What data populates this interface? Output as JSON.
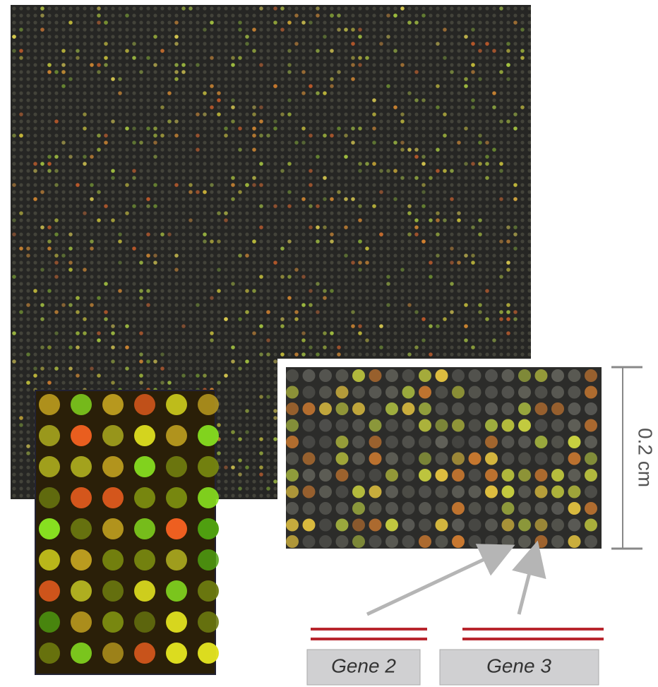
{
  "scale_label": "0.2 cm",
  "genes": [
    {
      "label": "Gene 2"
    },
    {
      "label": "Gene 3"
    }
  ]
}
